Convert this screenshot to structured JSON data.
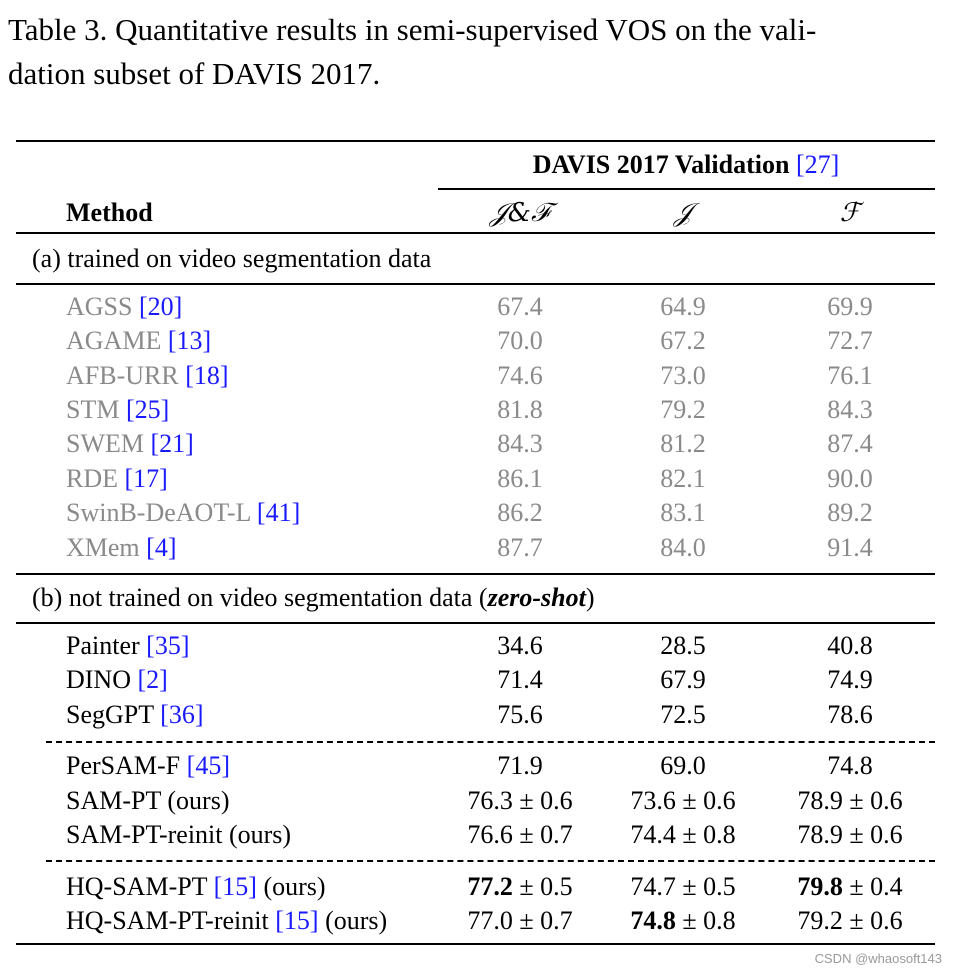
{
  "caption": {
    "line1": "Table 3. Quantitative results in semi-supervised VOS on the vali-",
    "line2": "dation subset of DAVIS 2017."
  },
  "header": {
    "group_label": "DAVIS 2017 Validation",
    "group_ref": "27",
    "method_label": "Method",
    "columns": [
      "𝒥&ℱ",
      "𝒥",
      "ℱ"
    ]
  },
  "sections": {
    "a_label": "(a) trained on video segmentation data",
    "b_label_pre": "(b) not trained on video segmentation data (",
    "b_label_em": "zero-shot",
    "b_label_post": ")"
  },
  "rows": [
    {
      "name": "AGSS",
      "ref": "20",
      "suffix": "",
      "jf": "67.4",
      "j": "64.9",
      "f": "69.9"
    },
    {
      "name": "AGAME",
      "ref": "13",
      "suffix": "",
      "jf": "70.0",
      "j": "67.2",
      "f": "72.7"
    },
    {
      "name": "AFB-URR",
      "ref": "18",
      "suffix": "",
      "jf": "74.6",
      "j": "73.0",
      "f": "76.1"
    },
    {
      "name": "STM",
      "ref": "25",
      "suffix": "",
      "jf": "81.8",
      "j": "79.2",
      "f": "84.3"
    },
    {
      "name": "SWEM",
      "ref": "21",
      "suffix": "",
      "jf": "84.3",
      "j": "81.2",
      "f": "87.4"
    },
    {
      "name": "RDE",
      "ref": "17",
      "suffix": "",
      "jf": "86.1",
      "j": "82.1",
      "f": "90.0"
    },
    {
      "name": "SwinB-DeAOT-L",
      "ref": "41",
      "suffix": "",
      "jf": "86.2",
      "j": "83.1",
      "f": "89.2"
    },
    {
      "name": "XMem",
      "ref": "4",
      "suffix": "",
      "jf": "87.7",
      "j": "84.0",
      "f": "91.4"
    },
    {
      "name": "Painter",
      "ref": "35",
      "suffix": "",
      "jf": "34.6",
      "j": "28.5",
      "f": "40.8"
    },
    {
      "name": "DINO",
      "ref": "2",
      "suffix": "",
      "jf": "71.4",
      "j": "67.9",
      "f": "74.9"
    },
    {
      "name": "SegGPT",
      "ref": "36",
      "suffix": "",
      "jf": "75.6",
      "j": "72.5",
      "f": "78.6"
    },
    {
      "name": "PerSAM-F",
      "ref": "45",
      "suffix": "",
      "jf": "71.9",
      "j": "69.0",
      "f": "74.8"
    },
    {
      "name": "SAM-PT (ours)",
      "ref": "",
      "suffix": "",
      "jf": "76.3 ± 0.6",
      "j": "73.6 ± 0.6",
      "f": "78.9 ± 0.6"
    },
    {
      "name": "SAM-PT-reinit (ours)",
      "ref": "",
      "suffix": "",
      "jf": "76.6 ± 0.7",
      "j": "74.4 ± 0.8",
      "f": "78.9 ± 0.6"
    },
    {
      "name": "HQ-SAM-PT",
      "ref": "15",
      "suffix": " (ours)",
      "jf_b": "77.2",
      "jf_r": " ± 0.5",
      "j": "74.7 ± 0.5",
      "f_b": "79.8",
      "f_r": " ± 0.4"
    },
    {
      "name": "HQ-SAM-PT-reinit",
      "ref": "15",
      "suffix": " (ours)",
      "jf": "77.0 ± 0.7",
      "j_b": "74.8",
      "j_r": " ± 0.8",
      "f": "79.2 ± 0.6"
    }
  ],
  "watermark": "CSDN @whaosoft143"
}
